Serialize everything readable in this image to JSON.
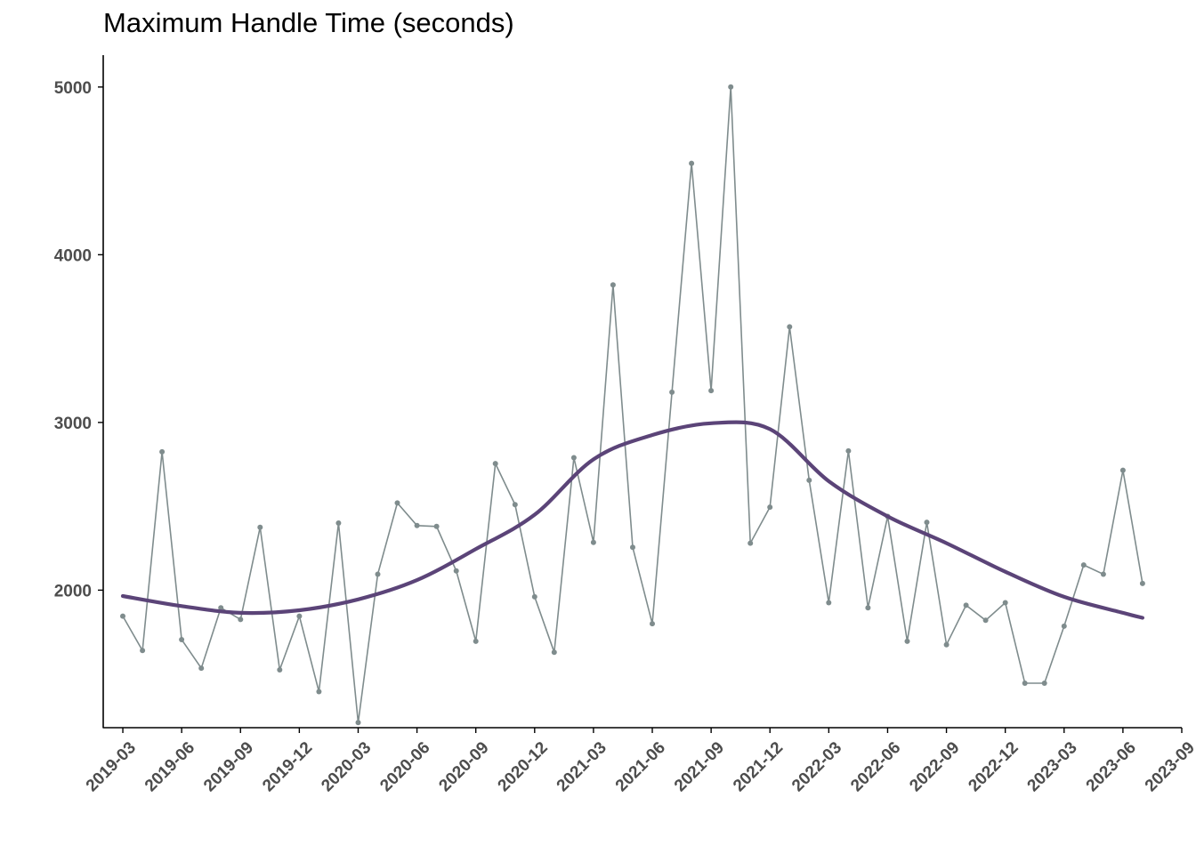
{
  "chart_data": {
    "type": "line",
    "title": "Maximum Handle Time (seconds)",
    "xlabel": "",
    "ylabel": "",
    "x_tick_labels": [
      "2019-03",
      "2019-06",
      "2019-09",
      "2019-12",
      "2020-03",
      "2020-06",
      "2020-09",
      "2020-12",
      "2021-03",
      "2021-06",
      "2021-09",
      "2021-12",
      "2022-03",
      "2022-06",
      "2022-09",
      "2022-12",
      "2023-03",
      "2023-06",
      "2023-09"
    ],
    "y_ticks": [
      2000,
      3000,
      4000,
      5000
    ],
    "xlim": [
      "2019-02",
      "2023-09"
    ],
    "ylim": [
      1180,
      5190
    ],
    "grid": false,
    "legend": "none",
    "colors": {
      "raw": "#7f8c8d",
      "trend": "#5b4478",
      "axis": "#000000"
    },
    "series": [
      {
        "kind": "raw",
        "x": [
          "2019-03",
          "2019-04",
          "2019-05",
          "2019-06",
          "2019-07",
          "2019-08",
          "2019-09",
          "2019-10",
          "2019-11",
          "2019-12",
          "2020-01",
          "2020-02",
          "2020-03",
          "2020-04",
          "2020-05",
          "2020-06",
          "2020-07",
          "2020-08",
          "2020-09",
          "2020-10",
          "2020-11",
          "2020-12",
          "2021-01",
          "2021-02",
          "2021-03",
          "2021-04",
          "2021-05",
          "2021-06",
          "2021-07",
          "2021-08",
          "2021-09",
          "2021-10",
          "2021-11",
          "2021-12",
          "2022-01",
          "2022-02",
          "2022-03",
          "2022-04",
          "2022-05",
          "2022-06",
          "2022-07",
          "2022-08",
          "2022-09",
          "2022-10",
          "2022-11",
          "2022-12",
          "2023-01",
          "2023-02",
          "2023-03",
          "2023-04",
          "2023-05",
          "2023-06",
          "2023-07"
        ],
        "values": [
          1845,
          1640,
          2825,
          1705,
          1535,
          1895,
          1825,
          2375,
          1525,
          1845,
          1395,
          2400,
          1210,
          2095,
          2520,
          2385,
          2380,
          2115,
          1695,
          2755,
          2510,
          1960,
          1630,
          2790,
          2285,
          3820,
          2255,
          1800,
          3180,
          4545,
          3190,
          5000,
          2280,
          2495,
          3570,
          2655,
          1925,
          2830,
          1895,
          2440,
          1695,
          2405,
          1675,
          1910,
          1820,
          1925,
          1445,
          1445,
          1785,
          2150,
          2095,
          2715,
          2040
        ]
      },
      {
        "kind": "trend",
        "x": [
          "2019-03",
          "2019-06",
          "2019-09",
          "2019-12",
          "2020-03",
          "2020-06",
          "2020-09",
          "2020-12",
          "2021-03",
          "2021-06",
          "2021-09",
          "2021-12",
          "2022-03",
          "2022-06",
          "2022-09",
          "2022-12",
          "2023-03",
          "2023-06",
          "2023-07"
        ],
        "values": [
          1965,
          1905,
          1865,
          1880,
          1945,
          2060,
          2245,
          2450,
          2780,
          2925,
          2995,
          2960,
          2650,
          2440,
          2280,
          2110,
          1960,
          1865,
          1835
        ]
      }
    ]
  }
}
